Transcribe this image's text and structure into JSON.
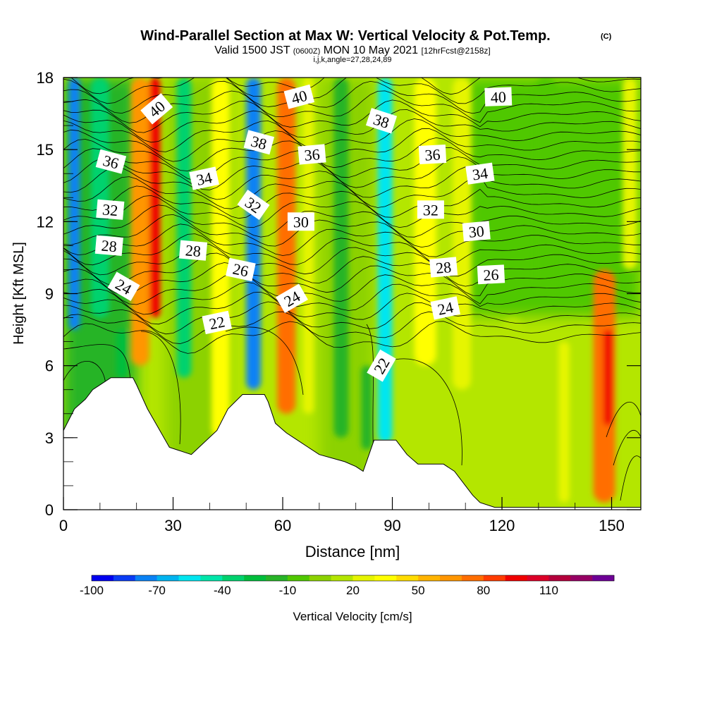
{
  "chart_data": {
    "type": "heatmap",
    "title": "Wind-Parallel Section at Max W: Vertical Velocity & Pot.Temp.",
    "title_mark": "(C)",
    "subtitle": {
      "valid": "Valid 1500 JST",
      "utc": "(0600Z)",
      "date": "MON 10 May 2021",
      "fcst": "[12hrFcst@2158z]"
    },
    "params": "i,j,k,angle=27,28,24,89",
    "xlabel": "Distance [nm]",
    "ylabel": "Height [Kft MSL]",
    "xlim": [
      0,
      158
    ],
    "ylim": [
      0,
      18
    ],
    "x_ticks": [
      "0",
      "30",
      "60",
      "90",
      "120",
      "150"
    ],
    "x_tick_values": [
      0,
      30,
      60,
      90,
      120,
      150
    ],
    "y_ticks": [
      "0",
      "3",
      "6",
      "9",
      "12",
      "15",
      "18"
    ],
    "y_tick_values": [
      0,
      3,
      6,
      9,
      12,
      15,
      18
    ],
    "colorbar": {
      "label": "Vertical Velocity [cm/s]",
      "tick_labels": [
        "-100",
        "-70",
        "-40",
        "-10",
        "20",
        "50",
        "80",
        "110"
      ],
      "levels": [
        -100,
        -90,
        -80,
        -70,
        -60,
        -50,
        -40,
        -30,
        -20,
        -10,
        0,
        10,
        20,
        30,
        40,
        50,
        60,
        70,
        80,
        90,
        100,
        110,
        120,
        130
      ],
      "colors": [
        "#0000f0",
        "#0a3cf5",
        "#0a82f5",
        "#00b4f0",
        "#00e6f0",
        "#00e6aa",
        "#00d26e",
        "#00be3c",
        "#28b428",
        "#50c800",
        "#8cd200",
        "#b4e600",
        "#e6f500",
        "#ffff00",
        "#ffdc00",
        "#ffb400",
        "#ff9600",
        "#ff6e00",
        "#ff3c00",
        "#f00000",
        "#dc0028",
        "#b4003c",
        "#960064",
        "#6e0096"
      ]
    },
    "velocity_features": [
      {
        "x": 3,
        "w": 3,
        "y0": 7.5,
        "y1": 18,
        "value": -80
      },
      {
        "x": 10,
        "w": 5,
        "y0": 8,
        "y1": 18,
        "value": -35
      },
      {
        "x": 21,
        "w": 5,
        "y0": 6,
        "y1": 18,
        "value": 60
      },
      {
        "x": 25,
        "w": 3,
        "y0": 8,
        "y1": 18,
        "value": 95
      },
      {
        "x": 33,
        "w": 4,
        "y0": 5.5,
        "y1": 18,
        "value": -35
      },
      {
        "x": 43,
        "w": 5,
        "y0": 3,
        "y1": 18,
        "value": 30
      },
      {
        "x": 52,
        "w": 4,
        "y0": 5,
        "y1": 18,
        "value": -80
      },
      {
        "x": 61,
        "w": 5,
        "y0": 4,
        "y1": 18,
        "value": 75
      },
      {
        "x": 67,
        "w": 3,
        "y0": 4,
        "y1": 18,
        "value": 25
      },
      {
        "x": 76,
        "w": 4,
        "y0": 3,
        "y1": 18,
        "value": -20
      },
      {
        "x": 88,
        "w": 4,
        "y0": 2.8,
        "y1": 18,
        "value": -55
      },
      {
        "x": 99,
        "w": 6,
        "y0": 6,
        "y1": 18,
        "value": 30
      },
      {
        "x": 148,
        "w": 6,
        "y0": 0.3,
        "y1": 10,
        "value": 70
      },
      {
        "x": 149,
        "w": 2.5,
        "y0": 3.5,
        "y1": 7.5,
        "value": 90
      },
      {
        "x": 109,
        "w": 5,
        "y0": 5,
        "y1": 18,
        "value": 20
      },
      {
        "x": 132,
        "w": 6,
        "y0": 9,
        "y1": 18,
        "value": -10
      },
      {
        "x": 155,
        "w": 4,
        "y0": 10,
        "y1": 18,
        "value": 25
      },
      {
        "x": 123,
        "w": 6,
        "y0": 0.3,
        "y1": 8,
        "value": 10
      },
      {
        "x": 137,
        "w": 3,
        "y0": 0.3,
        "y1": 7,
        "value": 20
      },
      {
        "x": 16,
        "w": 3,
        "y0": 5.5,
        "y1": 7.5,
        "value": -30
      },
      {
        "x": 83,
        "w": 3,
        "y0": 2.5,
        "y1": 6,
        "value": -15
      }
    ],
    "terrain": [
      [
        0,
        3.3
      ],
      [
        3,
        4.2
      ],
      [
        6,
        4.6
      ],
      [
        8,
        5.0
      ],
      [
        10,
        5.2
      ],
      [
        13,
        5.5
      ],
      [
        19,
        5.5
      ],
      [
        20,
        5.2
      ],
      [
        23,
        4.2
      ],
      [
        26,
        3.4
      ],
      [
        29,
        2.6
      ],
      [
        35,
        2.3
      ],
      [
        42,
        3.3
      ],
      [
        45,
        4.2
      ],
      [
        49,
        4.8
      ],
      [
        55,
        4.8
      ],
      [
        56,
        4.5
      ],
      [
        58,
        3.6
      ],
      [
        61,
        3.2
      ],
      [
        64,
        2.9
      ],
      [
        67,
        2.6
      ],
      [
        70,
        2.3
      ],
      [
        77,
        2.0
      ],
      [
        80,
        1.8
      ],
      [
        82,
        1.6
      ],
      [
        85,
        2.9
      ],
      [
        91,
        2.9
      ],
      [
        94,
        2.3
      ],
      [
        97,
        1.9
      ],
      [
        104,
        1.9
      ],
      [
        107,
        1.6
      ],
      [
        110,
        1.0
      ],
      [
        112,
        0.6
      ],
      [
        114,
        0.3
      ],
      [
        118,
        0.1
      ],
      [
        158,
        0.1
      ]
    ],
    "theta_labels": [
      {
        "text": "40",
        "x": 25.5,
        "y": 16.7,
        "rot": -40
      },
      {
        "text": "40",
        "x": 64.5,
        "y": 17.2,
        "rot": -15
      },
      {
        "text": "40",
        "x": 119,
        "y": 17.2,
        "rot": -2
      },
      {
        "text": "38",
        "x": 53.5,
        "y": 15.3,
        "rot": 15
      },
      {
        "text": "38",
        "x": 87,
        "y": 16.2,
        "rot": 18
      },
      {
        "text": "36",
        "x": 13,
        "y": 14.5,
        "rot": 15
      },
      {
        "text": "36",
        "x": 68,
        "y": 14.8,
        "rot": -5
      },
      {
        "text": "36",
        "x": 101,
        "y": 14.8,
        "rot": -3
      },
      {
        "text": "34",
        "x": 38.5,
        "y": 13.8,
        "rot": -12
      },
      {
        "text": "34",
        "x": 114,
        "y": 14.0,
        "rot": -8
      },
      {
        "text": "32",
        "x": 12.8,
        "y": 12.5,
        "rot": 5
      },
      {
        "text": "32",
        "x": 52,
        "y": 12.7,
        "rot": 35
      },
      {
        "text": "32",
        "x": 100.5,
        "y": 12.5,
        "rot": 0
      },
      {
        "text": "30",
        "x": 65,
        "y": 12.0,
        "rot": 0
      },
      {
        "text": "30",
        "x": 113,
        "y": 11.6,
        "rot": -5
      },
      {
        "text": "28",
        "x": 12.5,
        "y": 11.0,
        "rot": 5
      },
      {
        "text": "28",
        "x": 35.5,
        "y": 10.8,
        "rot": 5
      },
      {
        "text": "28",
        "x": 104,
        "y": 10.1,
        "rot": -5
      },
      {
        "text": "26",
        "x": 48.5,
        "y": 10.0,
        "rot": 12
      },
      {
        "text": "26",
        "x": 117,
        "y": 9.8,
        "rot": -3
      },
      {
        "text": "24",
        "x": 16.5,
        "y": 9.3,
        "rot": 30
      },
      {
        "text": "24",
        "x": 62.5,
        "y": 8.8,
        "rot": -30
      },
      {
        "text": "24",
        "x": 104.5,
        "y": 8.4,
        "rot": -12
      },
      {
        "text": "22",
        "x": 42,
        "y": 7.8,
        "rot": -12
      },
      {
        "text": "22",
        "x": 87,
        "y": 6.0,
        "rot": -60
      }
    ]
  }
}
